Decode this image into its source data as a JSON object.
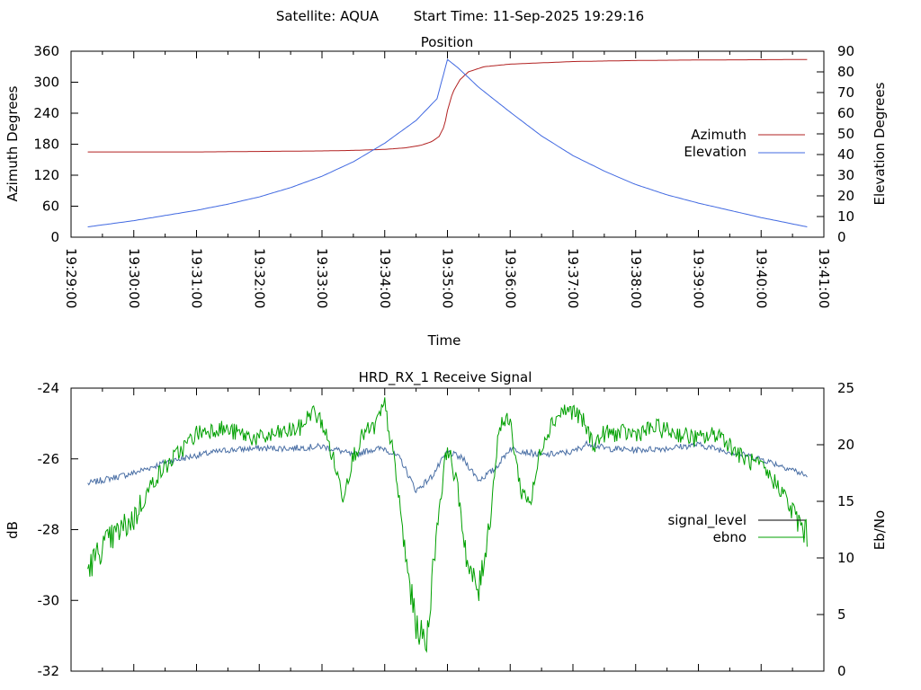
{
  "header": {
    "satellite_label": "Satellite: AQUA",
    "start_label": "Start Time: 11-Sep-2025 19:29:16"
  },
  "colors": {
    "azimuth": "#b22222",
    "elevation": "#4169e1",
    "signal_level": "#000000",
    "ebno": "#00a000",
    "signal_level_plotted": "#4a6fa5"
  },
  "chart_data": [
    {
      "type": "line",
      "title": "Position",
      "xlabel": "Time",
      "ylabel": "Azimuth Degrees",
      "y2label": "Elevation Degrees",
      "xlim": [
        "19:29:00",
        "19:41:00"
      ],
      "ylim": [
        0,
        360
      ],
      "y2lim": [
        0,
        90
      ],
      "x_ticks": [
        "19:29:00",
        "19:30:00",
        "19:31:00",
        "19:32:00",
        "19:33:00",
        "19:34:00",
        "19:35:00",
        "19:36:00",
        "19:37:00",
        "19:38:00",
        "19:39:00",
        "19:40:00",
        "19:41:00"
      ],
      "y_ticks": [
        "0",
        "60",
        "120",
        "180",
        "240",
        "300",
        "360"
      ],
      "y2_ticks": [
        "0",
        "10",
        "20",
        "30",
        "40",
        "50",
        "60",
        "70",
        "80",
        "90"
      ],
      "legend_position": "right",
      "series": [
        {
          "name": "Azimuth",
          "axis": "y",
          "x": [
            "19:29:16",
            "19:30:00",
            "19:31:00",
            "19:32:00",
            "19:33:00",
            "19:33:30",
            "19:34:00",
            "19:34:20",
            "19:34:35",
            "19:34:45",
            "19:34:52",
            "19:34:57",
            "19:35:00",
            "19:35:05",
            "19:35:12",
            "19:35:20",
            "19:35:35",
            "19:36:00",
            "19:37:00",
            "19:38:00",
            "19:39:00",
            "19:40:00",
            "19:40:44"
          ],
          "values": [
            165,
            165,
            165,
            166,
            167,
            168,
            170,
            173,
            178,
            185,
            195,
            215,
            245,
            280,
            305,
            320,
            330,
            335,
            340,
            342,
            343,
            343.5,
            344
          ]
        },
        {
          "name": "Elevation",
          "axis": "y2",
          "x": [
            "19:29:16",
            "19:30:00",
            "19:30:30",
            "19:31:00",
            "19:31:30",
            "19:32:00",
            "19:32:30",
            "19:33:00",
            "19:33:30",
            "19:34:00",
            "19:34:30",
            "19:34:50",
            "19:35:00",
            "19:35:10",
            "19:35:30",
            "19:36:00",
            "19:36:30",
            "19:37:00",
            "19:37:30",
            "19:38:00",
            "19:38:30",
            "19:39:00",
            "19:39:30",
            "19:40:00",
            "19:40:44"
          ],
          "values": [
            5,
            8,
            10.5,
            13,
            16,
            19.5,
            24,
            29.5,
            36.5,
            45.5,
            56.5,
            67,
            86,
            82,
            72.5,
            60.5,
            49,
            39.5,
            32,
            25.5,
            20.5,
            16.5,
            13,
            9.5,
            5
          ]
        }
      ]
    },
    {
      "type": "line",
      "title": "HRD_RX_1 Receive Signal",
      "xlabel": "",
      "ylabel": "dB",
      "y2label": "Eb/No",
      "ylim": [
        -32,
        -24
      ],
      "y2lim": [
        0,
        25
      ],
      "y_ticks": [
        "-24",
        "-26",
        "-28",
        "-30",
        "-32"
      ],
      "y2_ticks": [
        "0",
        "5",
        "10",
        "15",
        "20",
        "25"
      ],
      "legend_position": "right",
      "series": [
        {
          "name": "signal_level",
          "axis": "y",
          "x": [
            "19:29:16",
            "19:29:30",
            "19:30:00",
            "19:30:30",
            "19:31:00",
            "19:31:30",
            "19:32:00",
            "19:32:30",
            "19:33:00",
            "19:33:15",
            "19:33:30",
            "19:33:45",
            "19:34:00",
            "19:34:15",
            "19:34:30",
            "19:34:45",
            "19:35:00",
            "19:35:15",
            "19:35:30",
            "19:35:45",
            "19:36:00",
            "19:36:30",
            "19:37:00",
            "19:37:15",
            "19:37:30",
            "19:38:00",
            "19:38:30",
            "19:39:00",
            "19:39:30",
            "19:40:00",
            "19:40:30",
            "19:40:44"
          ],
          "values": [
            -26.7,
            -26.6,
            -26.4,
            -26.1,
            -25.9,
            -25.75,
            -25.7,
            -25.7,
            -25.65,
            -25.75,
            -25.9,
            -25.75,
            -25.7,
            -26.0,
            -26.9,
            -26.5,
            -25.8,
            -26.0,
            -26.6,
            -26.3,
            -25.7,
            -25.9,
            -25.8,
            -25.55,
            -25.7,
            -25.75,
            -25.7,
            -25.6,
            -25.8,
            -26.0,
            -26.3,
            -26.5
          ]
        },
        {
          "name": "ebno",
          "axis": "y2",
          "x": [
            "19:29:16",
            "19:29:30",
            "19:30:00",
            "19:30:20",
            "19:30:40",
            "19:31:00",
            "19:31:20",
            "19:31:40",
            "19:32:00",
            "19:32:20",
            "19:32:40",
            "19:32:50",
            "19:33:00",
            "19:33:10",
            "19:33:20",
            "19:33:30",
            "19:33:40",
            "19:33:50",
            "19:34:00",
            "19:34:10",
            "19:34:20",
            "19:34:30",
            "19:34:40",
            "19:34:50",
            "19:35:00",
            "19:35:10",
            "19:35:20",
            "19:35:30",
            "19:35:40",
            "19:35:50",
            "19:36:00",
            "19:36:10",
            "19:36:20",
            "19:36:30",
            "19:36:40",
            "19:36:50",
            "19:37:00",
            "19:37:10",
            "19:37:20",
            "19:37:30",
            "19:37:40",
            "19:38:00",
            "19:38:20",
            "19:38:40",
            "19:39:00",
            "19:39:20",
            "19:39:40",
            "19:40:00",
            "19:40:20",
            "19:40:30",
            "19:40:44"
          ],
          "values": [
            9,
            11,
            13.5,
            17,
            19,
            21,
            21.5,
            21,
            20.5,
            21,
            21.5,
            23,
            22,
            19,
            15.5,
            19,
            21,
            21.5,
            23.5,
            18,
            10,
            4,
            2.5,
            13,
            20,
            16,
            9,
            7,
            13,
            22,
            22,
            16,
            15,
            20,
            22,
            23,
            23,
            22,
            20,
            21,
            21,
            21,
            21.5,
            21,
            20.5,
            21,
            19,
            18,
            16,
            14,
            12
          ]
        }
      ]
    }
  ]
}
